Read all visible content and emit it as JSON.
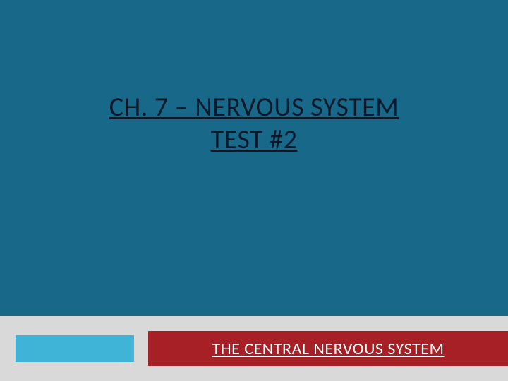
{
  "slide": {
    "background_color": "#18688a",
    "title_line1": "CH. 7 – NERVOUS SYSTEM",
    "title_line2": "TEST #2",
    "title_color": "#0a1a2a",
    "title_fontsize": 38
  },
  "footer": {
    "band_color": "#d9d9d9",
    "left_block_color": "#3fb4d6",
    "right_block_color": "#a62025",
    "subtitle": "THE CENTRAL NERVOUS SYSTEM",
    "subtitle_color": "#ffffff",
    "subtitle_fontsize": 24
  }
}
